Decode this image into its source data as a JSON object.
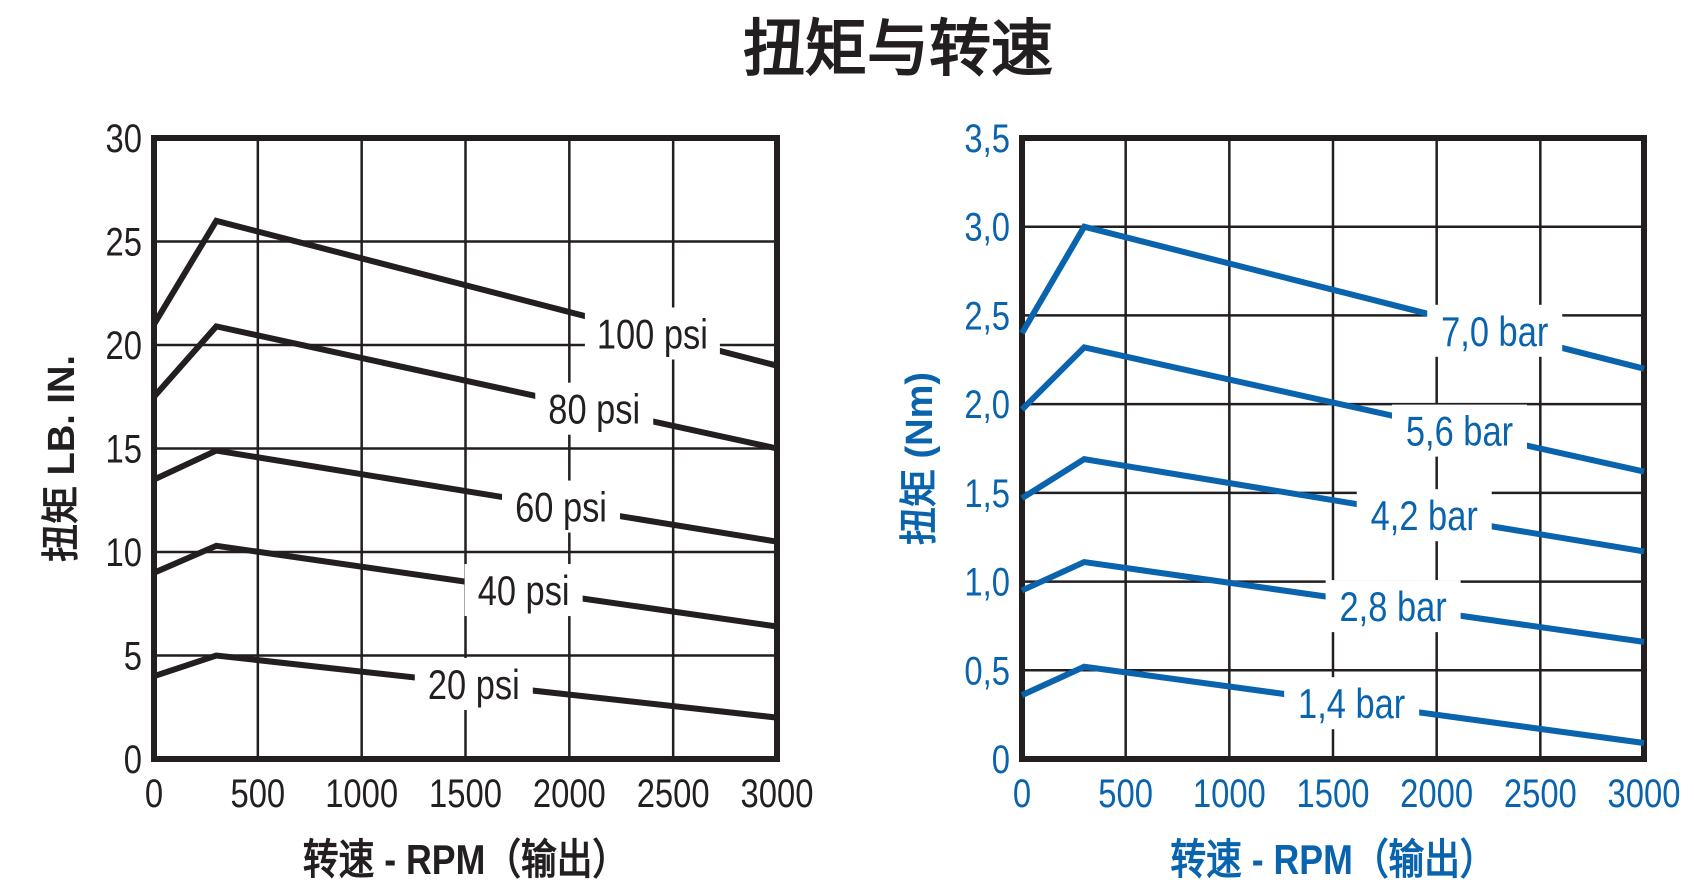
{
  "title": "扭矩与转速",
  "chart_data": [
    {
      "type": "line",
      "color": "#231f20",
      "ylabel": "扭矩 LB. IN.",
      "xlabel": "转速 - RPM（输出）",
      "xlim": [
        0,
        3000
      ],
      "ylim": [
        0,
        30
      ],
      "xticks": [
        0,
        500,
        1000,
        1500,
        2000,
        2500,
        3000
      ],
      "xtick_labels": [
        "0",
        "500",
        "1000",
        "1500",
        "2000",
        "2500",
        "3000"
      ],
      "yticks": [
        0,
        5,
        10,
        15,
        20,
        25,
        30
      ],
      "ytick_labels": [
        "0",
        "5",
        "10",
        "15",
        "20",
        "25",
        "30"
      ],
      "grid": true,
      "x": [
        0,
        300,
        3000
      ],
      "series": [
        {
          "name": "100 psi",
          "values": [
            21,
            26,
            19
          ],
          "label_at": 2400
        },
        {
          "name": "80 psi",
          "values": [
            17.5,
            20.9,
            15
          ],
          "label_at": 2120
        },
        {
          "name": "60 psi",
          "values": [
            13.5,
            14.9,
            10.5
          ],
          "label_at": 1960
        },
        {
          "name": "40 psi",
          "values": [
            9,
            10.3,
            6.4
          ],
          "label_at": 1780
        },
        {
          "name": "20 psi",
          "values": [
            4,
            5,
            2
          ],
          "label_at": 1540
        }
      ]
    },
    {
      "type": "line",
      "color": "#0a63ad",
      "ylabel": "扭矩 (Nm)",
      "xlabel": "转速 - RPM（输出）",
      "xlim": [
        0,
        3000
      ],
      "ylim": [
        0,
        3.5
      ],
      "xticks": [
        0,
        500,
        1000,
        1500,
        2000,
        2500,
        3000
      ],
      "xtick_labels": [
        "0",
        "500",
        "1000",
        "1500",
        "2000",
        "2500",
        "3000"
      ],
      "yticks": [
        0,
        0.5,
        1.0,
        1.5,
        2.0,
        2.5,
        3.0,
        3.5
      ],
      "ytick_labels": [
        "0",
        "0,5",
        "1,0",
        "1,5",
        "2,0",
        "2,5",
        "3,0",
        "3,5"
      ],
      "grid": true,
      "x": [
        0,
        300,
        3000
      ],
      "series": [
        {
          "name": "7,0 bar",
          "values": [
            2.4,
            3.0,
            2.2
          ],
          "label_at": 2280
        },
        {
          "name": "5,6 bar",
          "values": [
            1.97,
            2.32,
            1.62
          ],
          "label_at": 2110
        },
        {
          "name": "4,2 bar",
          "values": [
            1.47,
            1.69,
            1.17
          ],
          "label_at": 1940
        },
        {
          "name": "2,8 bar",
          "values": [
            0.95,
            1.11,
            0.66
          ],
          "label_at": 1790
        },
        {
          "name": "1,4 bar",
          "values": [
            0.36,
            0.52,
            0.09
          ],
          "label_at": 1590
        }
      ]
    }
  ]
}
